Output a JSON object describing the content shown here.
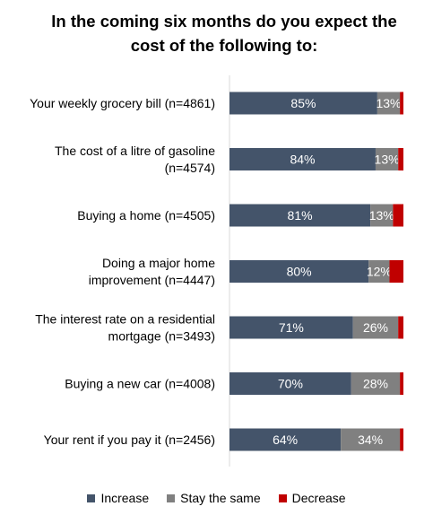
{
  "chart_data": {
    "type": "bar",
    "orientation": "horizontal",
    "stacked": true,
    "title": [
      "In the coming six months do you expect the",
      "cost of the following to:"
    ],
    "categories": [
      [
        "Your weekly grocery bill (n=4861)"
      ],
      [
        "The cost of a litre of gasoline",
        "(n=4574)"
      ],
      [
        "Buying a home (n=4505)"
      ],
      [
        "Doing a major home",
        "improvement (n=4447)"
      ],
      [
        "The interest rate on a residential",
        "mortgage (n=3493)"
      ],
      [
        "Buying a new car (n=4008)"
      ],
      [
        "Your rent if you pay it (n=2456)"
      ]
    ],
    "series": [
      {
        "name": "Increase",
        "color": "#44546a",
        "values": [
          85,
          84,
          81,
          80,
          71,
          70,
          64
        ],
        "labels": [
          "85%",
          "84%",
          "81%",
          "80%",
          "71%",
          "70%",
          "64%"
        ]
      },
      {
        "name": "Stay the same",
        "color": "#808080",
        "values": [
          13,
          13,
          13,
          12,
          26,
          28,
          34
        ],
        "labels": [
          "13%",
          "13%",
          "13%",
          "12%",
          "26%",
          "28%",
          "34%"
        ]
      },
      {
        "name": "Decrease",
        "color": "#c00000",
        "values": [
          2,
          3,
          6,
          8,
          3,
          2,
          2
        ],
        "labels": [
          "",
          "",
          "",
          "",
          "",
          "",
          ""
        ]
      }
    ],
    "xlim": [
      0,
      100
    ],
    "legend": "bottom",
    "grid": false
  }
}
